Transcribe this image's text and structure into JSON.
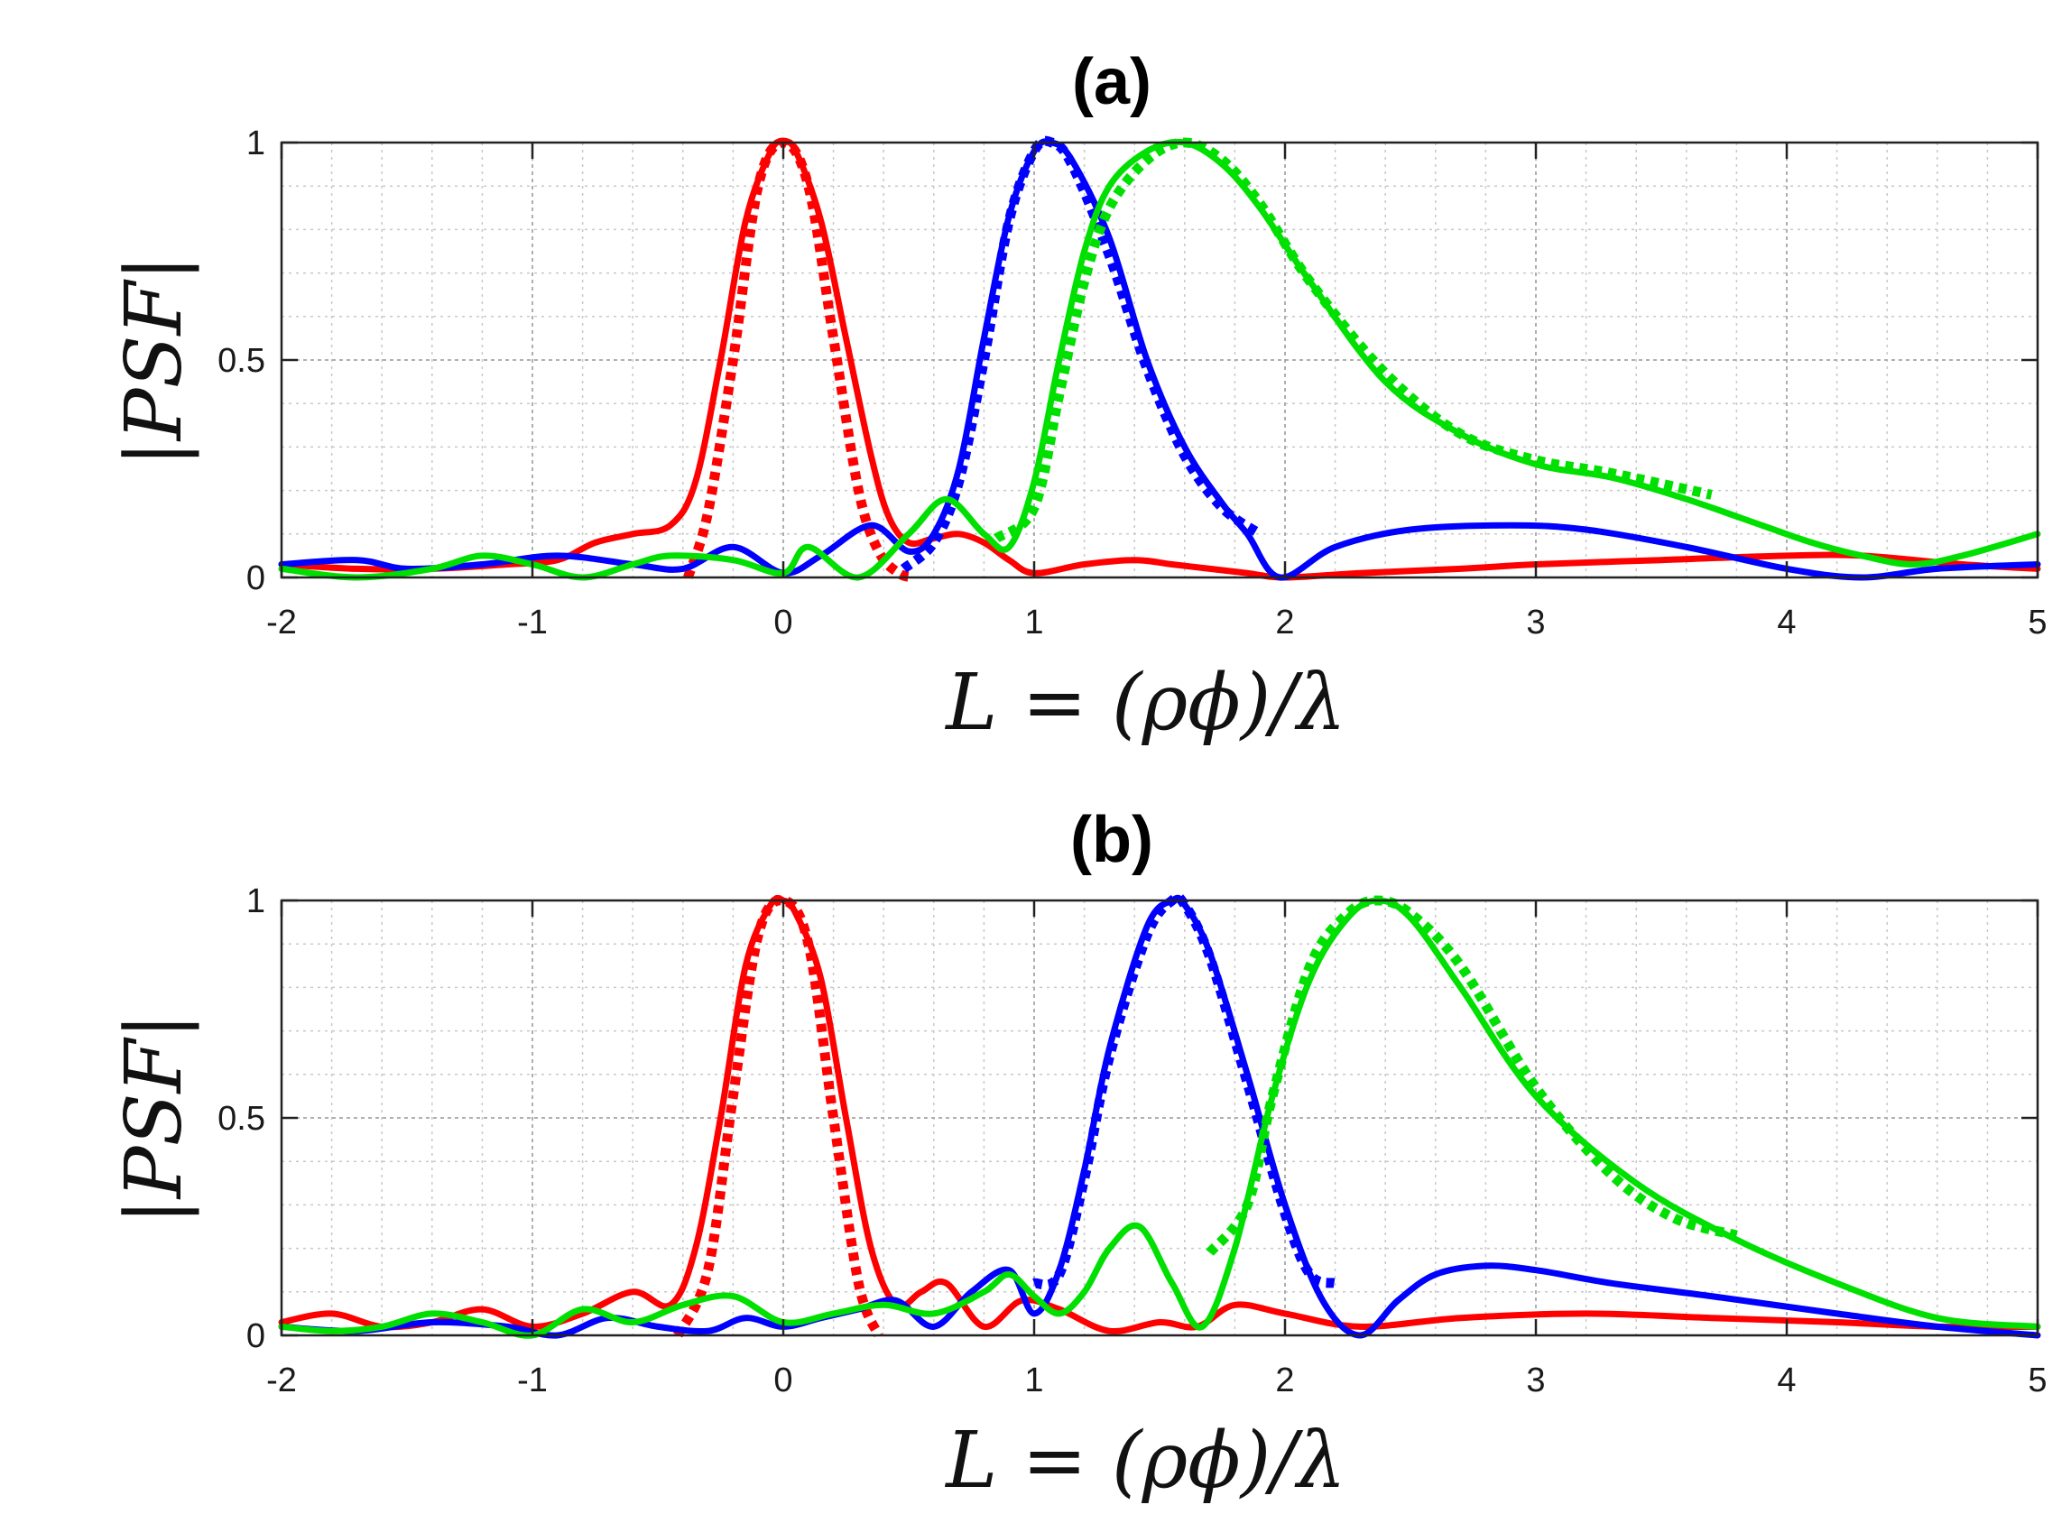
{
  "chart_data": [
    {
      "type": "line",
      "title": "(a)",
      "xlabel": "L = (ρϕ)/λ",
      "ylabel": "|PSF|",
      "xlim": [
        -2,
        5
      ],
      "ylim": [
        0,
        1
      ],
      "xticks": [
        "-2",
        "-1",
        "0",
        "1",
        "2",
        "3",
        "4",
        "5"
      ],
      "yticks": [
        "0",
        "0.5",
        "1"
      ],
      "grid": "major and minor",
      "series": [
        {
          "name": "red-solid",
          "color": "#ff0000",
          "style": "solid",
          "x": [
            -2,
            -1.7,
            -1.4,
            -1.1,
            -0.9,
            -0.75,
            -0.6,
            -0.45,
            -0.35,
            -0.25,
            -0.15,
            -0.05,
            0,
            0.05,
            0.15,
            0.25,
            0.35,
            0.42,
            0.5,
            0.6,
            0.7,
            0.8,
            0.9,
            1.0,
            1.2,
            1.4,
            1.55,
            1.7,
            1.85,
            2.0,
            2.3,
            2.7,
            3.0,
            3.5,
            4.0,
            4.3,
            4.7,
            5.0
          ],
          "y": [
            0.03,
            0.02,
            0.02,
            0.03,
            0.04,
            0.08,
            0.1,
            0.12,
            0.22,
            0.5,
            0.82,
            0.98,
            1.0,
            0.98,
            0.82,
            0.55,
            0.28,
            0.14,
            0.08,
            0.09,
            0.1,
            0.08,
            0.04,
            0.01,
            0.03,
            0.04,
            0.03,
            0.02,
            0.01,
            0.0,
            0.01,
            0.02,
            0.03,
            0.04,
            0.05,
            0.05,
            0.03,
            0.02
          ]
        },
        {
          "name": "red-dotted",
          "color": "#ff0000",
          "style": "dotted",
          "x": [
            -0.38,
            -0.3,
            -0.2,
            -0.1,
            0,
            0.1,
            0.2,
            0.3,
            0.38,
            0.46,
            0.52
          ],
          "y": [
            0.0,
            0.15,
            0.5,
            0.9,
            1.0,
            0.9,
            0.55,
            0.2,
            0.06,
            0.01,
            0.0
          ]
        },
        {
          "name": "blue-solid",
          "color": "#0000ff",
          "style": "solid",
          "x": [
            -2,
            -1.7,
            -1.5,
            -1.2,
            -0.9,
            -0.6,
            -0.4,
            -0.2,
            0,
            0.15,
            0.35,
            0.5,
            0.6,
            0.7,
            0.8,
            0.9,
            1.0,
            1.07,
            1.15,
            1.3,
            1.45,
            1.6,
            1.75,
            1.85,
            1.98,
            2.2,
            2.5,
            2.9,
            3.2,
            3.6,
            4.0,
            4.3,
            4.6,
            5.0
          ],
          "y": [
            0.03,
            0.04,
            0.02,
            0.03,
            0.05,
            0.03,
            0.02,
            0.07,
            0.01,
            0.05,
            0.12,
            0.06,
            0.1,
            0.25,
            0.55,
            0.83,
            0.98,
            1.0,
            0.96,
            0.78,
            0.5,
            0.3,
            0.17,
            0.1,
            0.0,
            0.07,
            0.11,
            0.12,
            0.11,
            0.07,
            0.02,
            0.0,
            0.02,
            0.03
          ]
        },
        {
          "name": "blue-dotted",
          "color": "#0000ff",
          "style": "dotted",
          "x": [
            0.48,
            0.6,
            0.7,
            0.8,
            0.9,
            1.0,
            1.07,
            1.15,
            1.3,
            1.45,
            1.6,
            1.75,
            1.9
          ],
          "y": [
            0.02,
            0.08,
            0.22,
            0.5,
            0.82,
            0.98,
            1.0,
            0.95,
            0.74,
            0.48,
            0.28,
            0.16,
            0.1
          ]
        },
        {
          "name": "green-solid",
          "color": "#00e000",
          "style": "solid",
          "x": [
            -2,
            -1.7,
            -1.4,
            -1.2,
            -1.0,
            -0.8,
            -0.6,
            -0.45,
            -0.2,
            0,
            0.1,
            0.3,
            0.5,
            0.65,
            0.8,
            0.9,
            1.0,
            1.1,
            1.2,
            1.3,
            1.45,
            1.6,
            1.75,
            1.9,
            2.1,
            2.4,
            2.7,
            3.0,
            3.3,
            3.6,
            3.9,
            4.1,
            4.3,
            4.5,
            4.7,
            5.0
          ],
          "y": [
            0.02,
            0.0,
            0.02,
            0.05,
            0.03,
            0.0,
            0.03,
            0.05,
            0.04,
            0.01,
            0.07,
            0.0,
            0.1,
            0.18,
            0.1,
            0.07,
            0.22,
            0.5,
            0.75,
            0.9,
            0.98,
            1.0,
            0.95,
            0.85,
            0.68,
            0.45,
            0.33,
            0.26,
            0.23,
            0.18,
            0.12,
            0.08,
            0.05,
            0.03,
            0.05,
            0.1
          ]
        },
        {
          "name": "green-dotted",
          "color": "#00e000",
          "style": "dotted",
          "x": [
            0.85,
            1.0,
            1.1,
            1.2,
            1.3,
            1.45,
            1.6,
            1.75,
            1.9,
            2.1,
            2.4,
            2.7,
            3.0,
            3.3,
            3.7
          ],
          "y": [
            0.09,
            0.16,
            0.42,
            0.68,
            0.85,
            0.96,
            1.0,
            0.96,
            0.86,
            0.68,
            0.47,
            0.33,
            0.27,
            0.24,
            0.19
          ]
        }
      ]
    },
    {
      "type": "line",
      "title": "(b)",
      "xlabel": "L = (ρϕ)/λ",
      "ylabel": "|PSF|",
      "xlim": [
        -2,
        5
      ],
      "ylim": [
        0,
        1
      ],
      "xticks": [
        "-2",
        "-1",
        "0",
        "1",
        "2",
        "3",
        "4",
        "5"
      ],
      "yticks": [
        "0",
        "0.5",
        "1"
      ],
      "grid": "major and minor",
      "series": [
        {
          "name": "red-solid",
          "color": "#ff0000",
          "style": "solid",
          "x": [
            -2,
            -1.8,
            -1.6,
            -1.4,
            -1.2,
            -1.0,
            -0.8,
            -0.6,
            -0.45,
            -0.35,
            -0.25,
            -0.15,
            -0.05,
            0,
            0.05,
            0.15,
            0.25,
            0.35,
            0.45,
            0.55,
            0.65,
            0.8,
            0.95,
            1.1,
            1.3,
            1.5,
            1.65,
            1.8,
            2.0,
            2.3,
            2.7,
            3.2,
            3.7,
            4.2,
            4.6,
            5.0
          ],
          "y": [
            0.03,
            0.05,
            0.02,
            0.03,
            0.06,
            0.02,
            0.05,
            0.1,
            0.07,
            0.2,
            0.5,
            0.85,
            0.99,
            1.0,
            0.97,
            0.82,
            0.5,
            0.2,
            0.07,
            0.1,
            0.12,
            0.02,
            0.08,
            0.06,
            0.01,
            0.03,
            0.02,
            0.07,
            0.05,
            0.02,
            0.04,
            0.05,
            0.04,
            0.03,
            0.02,
            0.02
          ]
        },
        {
          "name": "red-dotted",
          "color": "#ff0000",
          "style": "dotted",
          "x": [
            -0.42,
            -0.3,
            -0.2,
            -0.1,
            0,
            0.1,
            0.2,
            0.3,
            0.38
          ],
          "y": [
            0.0,
            0.15,
            0.55,
            0.92,
            1.0,
            0.9,
            0.5,
            0.12,
            0.0
          ]
        },
        {
          "name": "blue-solid",
          "color": "#0000ff",
          "style": "solid",
          "x": [
            -2,
            -1.7,
            -1.4,
            -1.1,
            -0.9,
            -0.7,
            -0.5,
            -0.3,
            -0.15,
            0,
            0.15,
            0.3,
            0.45,
            0.6,
            0.75,
            0.9,
            1.0,
            1.1,
            1.2,
            1.3,
            1.45,
            1.55,
            1.6,
            1.7,
            1.85,
            2.0,
            2.15,
            2.3,
            2.45,
            2.6,
            2.8,
            3.0,
            3.3,
            3.7,
            4.2,
            4.6,
            5.0
          ],
          "y": [
            0.02,
            0.01,
            0.03,
            0.02,
            0.0,
            0.04,
            0.02,
            0.01,
            0.04,
            0.02,
            0.04,
            0.06,
            0.08,
            0.02,
            0.1,
            0.15,
            0.05,
            0.15,
            0.38,
            0.66,
            0.94,
            1.0,
            0.99,
            0.88,
            0.6,
            0.3,
            0.08,
            0.0,
            0.08,
            0.14,
            0.16,
            0.15,
            0.12,
            0.09,
            0.05,
            0.02,
            0.0
          ]
        },
        {
          "name": "blue-dotted",
          "color": "#0000ff",
          "style": "dotted",
          "x": [
            1.0,
            1.1,
            1.2,
            1.3,
            1.45,
            1.55,
            1.6,
            1.7,
            1.85,
            2.0,
            2.1,
            2.2
          ],
          "y": [
            0.12,
            0.14,
            0.36,
            0.64,
            0.92,
            1.0,
            0.99,
            0.87,
            0.58,
            0.28,
            0.14,
            0.12
          ]
        },
        {
          "name": "green-solid",
          "color": "#00e000",
          "style": "solid",
          "x": [
            -2,
            -1.8,
            -1.6,
            -1.4,
            -1.2,
            -1.0,
            -0.8,
            -0.6,
            -0.4,
            -0.2,
            0,
            0.2,
            0.4,
            0.6,
            0.8,
            0.9,
            1.0,
            1.1,
            1.2,
            1.3,
            1.42,
            1.55,
            1.67,
            1.8,
            1.95,
            2.1,
            2.25,
            2.37,
            2.5,
            2.7,
            3.0,
            3.4,
            3.8,
            4.2,
            4.6,
            5.0
          ],
          "y": [
            0.02,
            0.01,
            0.02,
            0.05,
            0.03,
            0.0,
            0.06,
            0.03,
            0.07,
            0.09,
            0.03,
            0.05,
            0.07,
            0.05,
            0.1,
            0.14,
            0.09,
            0.05,
            0.1,
            0.2,
            0.25,
            0.12,
            0.02,
            0.2,
            0.55,
            0.82,
            0.96,
            1.0,
            0.96,
            0.8,
            0.55,
            0.35,
            0.22,
            0.12,
            0.04,
            0.02
          ]
        },
        {
          "name": "green-dotted",
          "color": "#00e000",
          "style": "dotted",
          "x": [
            1.7,
            1.85,
            1.95,
            2.1,
            2.25,
            2.37,
            2.5,
            2.7,
            3.0,
            3.3,
            3.55,
            3.8
          ],
          "y": [
            0.19,
            0.3,
            0.55,
            0.85,
            0.97,
            1.0,
            0.97,
            0.85,
            0.57,
            0.37,
            0.27,
            0.23
          ]
        }
      ]
    }
  ]
}
